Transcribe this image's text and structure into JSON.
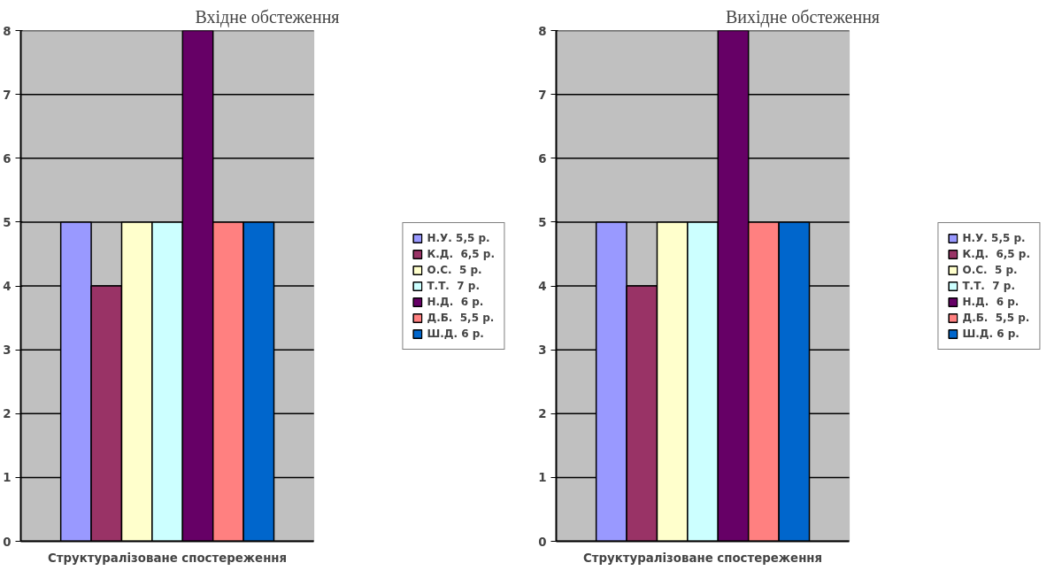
{
  "chart_data": [
    {
      "type": "bar",
      "title": "Вхідне обстеження",
      "categories": [
        "Структуралізоване спостереження"
      ],
      "ylim": [
        0,
        8
      ],
      "yticks": [
        0,
        1,
        2,
        3,
        4,
        5,
        6,
        7,
        8
      ],
      "grid": "y",
      "legend": "right",
      "series": [
        {
          "name": "Н.У. 5,5 р.",
          "color": "#9999ff",
          "values": [
            5
          ]
        },
        {
          "name": "К.Д.  6,5 р.",
          "color": "#993366",
          "values": [
            4
          ]
        },
        {
          "name": "О.С.  5 р.",
          "color": "#ffffcc",
          "values": [
            5
          ]
        },
        {
          "name": "Т.Т.  7 р.",
          "color": "#ccffff",
          "values": [
            5
          ]
        },
        {
          "name": "Н.Д.  6 р.",
          "color": "#660066",
          "values": [
            8
          ]
        },
        {
          "name": "Д.Б.  5,5 р.",
          "color": "#ff8080",
          "values": [
            5
          ]
        },
        {
          "name": "Ш.Д. 6 р.",
          "color": "#0066cc",
          "values": [
            5
          ]
        }
      ]
    },
    {
      "type": "bar",
      "title": "Вихідне обстеження",
      "categories": [
        "Структуралізоване спостереження"
      ],
      "ylim": [
        0,
        8
      ],
      "yticks": [
        0,
        1,
        2,
        3,
        4,
        5,
        6,
        7,
        8
      ],
      "grid": "y",
      "legend": "right",
      "series": [
        {
          "name": "Н.У. 5,5 р.",
          "color": "#9999ff",
          "values": [
            5
          ]
        },
        {
          "name": "К.Д.  6,5 р.",
          "color": "#993366",
          "values": [
            4
          ]
        },
        {
          "name": "О.С.  5 р.",
          "color": "#ffffcc",
          "values": [
            5
          ]
        },
        {
          "name": "Т.Т.  7 р.",
          "color": "#ccffff",
          "values": [
            5
          ]
        },
        {
          "name": "Н.Д.  6 р.",
          "color": "#660066",
          "values": [
            8
          ]
        },
        {
          "name": "Д.Б.  5,5 р.",
          "color": "#ff8080",
          "values": [
            5
          ]
        },
        {
          "name": "Ш.Д. 6 р.",
          "color": "#0066cc",
          "values": [
            5
          ]
        }
      ]
    }
  ]
}
